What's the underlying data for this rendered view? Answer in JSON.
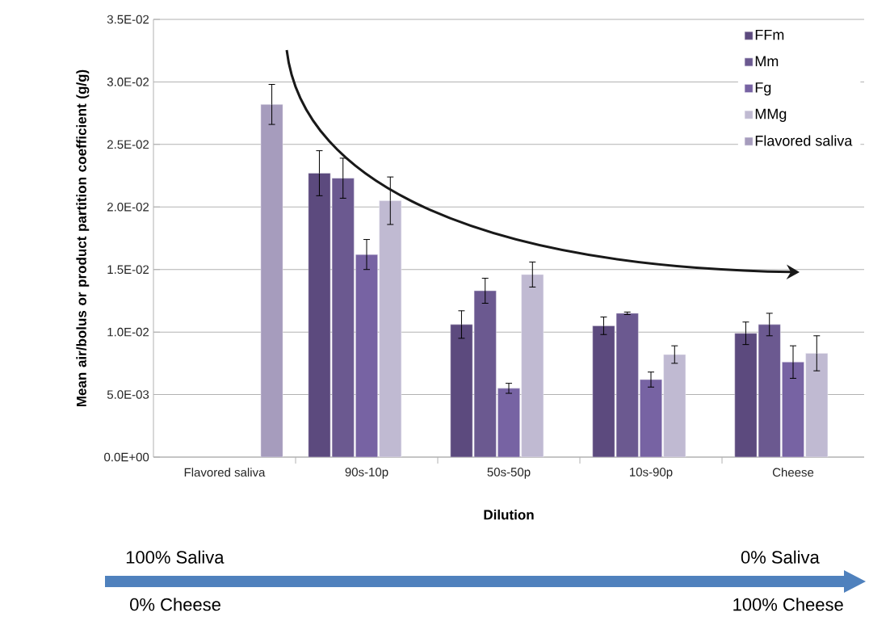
{
  "chart_data": {
    "type": "bar",
    "xlabel": "Dilution",
    "ylabel": "Mean air/bolus or product partition coefficient (g/g)",
    "categories": [
      "Flavored saliva",
      "90s-10p",
      "50s-50p",
      "10s-90p",
      "Cheese"
    ],
    "series": [
      {
        "name": "FFm",
        "color": "#5c4a7e",
        "values": [
          null,
          0.0227,
          0.0106,
          0.0105,
          0.0099
        ],
        "errors": [
          null,
          0.0018,
          0.0011,
          0.0007,
          0.0009
        ]
      },
      {
        "name": "Mm",
        "color": "#6b5990",
        "values": [
          null,
          0.0223,
          0.0133,
          0.0115,
          0.0106
        ],
        "errors": [
          null,
          0.0016,
          0.001,
          0.0001,
          0.0009
        ]
      },
      {
        "name": "Fg",
        "color": "#7763a3",
        "values": [
          null,
          0.0162,
          0.0055,
          0.0062,
          0.0076
        ],
        "errors": [
          null,
          0.0012,
          0.0004,
          0.0006,
          0.0013
        ]
      },
      {
        "name": "MMg",
        "color": "#c0bad2",
        "values": [
          null,
          0.0205,
          0.0146,
          0.0082,
          0.0083
        ],
        "errors": [
          null,
          0.0019,
          0.001,
          0.0007,
          0.0014
        ]
      },
      {
        "name": "Flavored saliva",
        "color": "#a69cbd",
        "values": [
          0.0282,
          null,
          null,
          null,
          null
        ],
        "errors": [
          0.0016,
          null,
          null,
          null,
          null
        ]
      }
    ],
    "ylim": [
      0,
      0.035
    ],
    "yticks": [
      {
        "value": 0,
        "label": "0.0E+00"
      },
      {
        "value": 0.005,
        "label": "5.0E-03"
      },
      {
        "value": 0.01,
        "label": "1.0E-02"
      },
      {
        "value": 0.015,
        "label": "1.5E-02"
      },
      {
        "value": 0.02,
        "label": "2.0E-02"
      },
      {
        "value": 0.025,
        "label": "2.5E-02"
      },
      {
        "value": 0.03,
        "label": "3.0E-02"
      },
      {
        "value": 0.035,
        "label": "3.5E-02"
      }
    ],
    "grid": "y",
    "legend": "top right",
    "annotations": [
      "100% Saliva",
      "0% Cheese",
      "0% Saliva",
      "100% Cheese"
    ]
  }
}
